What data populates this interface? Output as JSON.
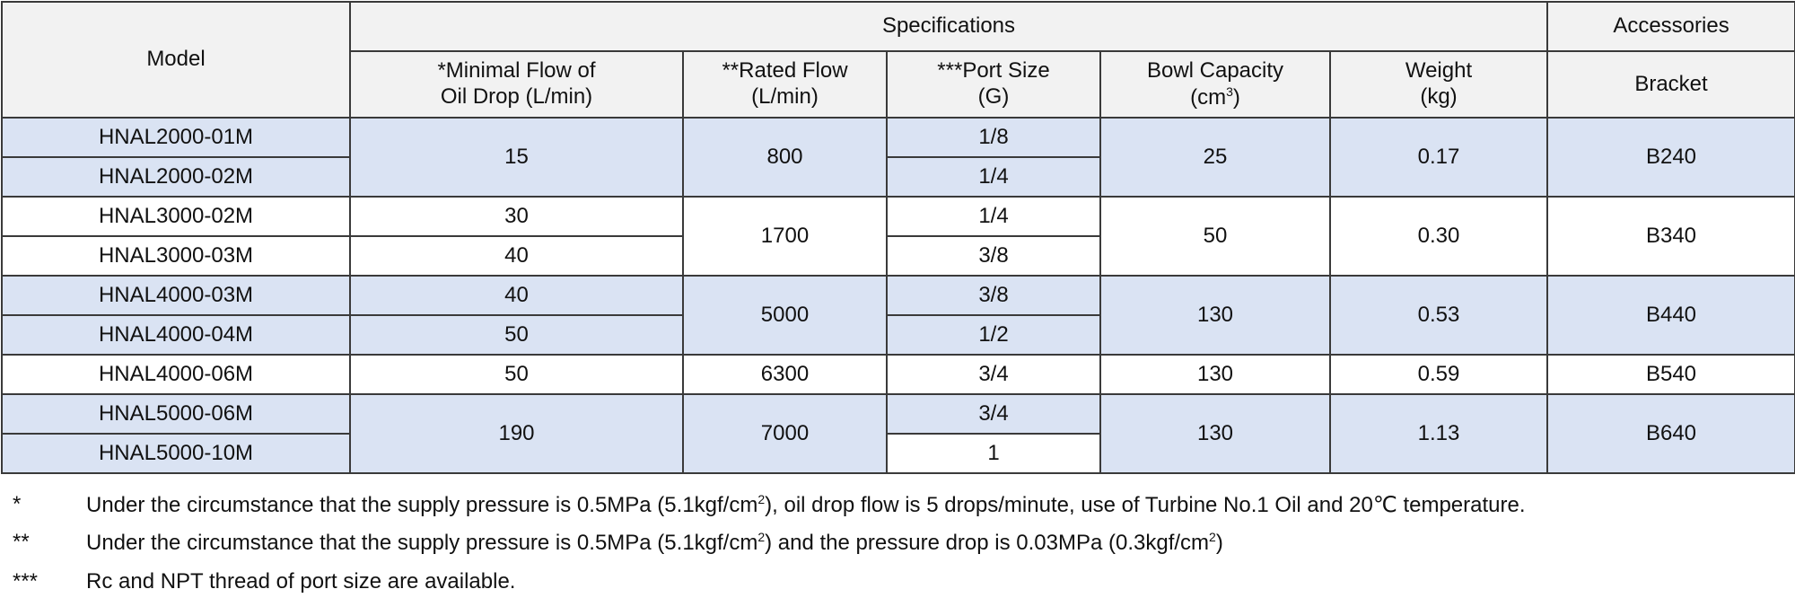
{
  "header": {
    "model": "Model",
    "specifications": "Specifications",
    "accessories": "Accessories",
    "min_flow": [
      "*Minimal Flow of",
      "Oil Drop (L/min)"
    ],
    "rated_flow": [
      "**Rated Flow",
      "(L/min)"
    ],
    "port_size": [
      "***Port Size",
      "(G)"
    ],
    "bowl_capacity": [
      "Bowl Capacity",
      "(cm",
      "3",
      ")"
    ],
    "weight": [
      "Weight",
      "(kg)"
    ],
    "bracket": "Bracket"
  },
  "rows": [
    {
      "model": "HNAL2000-01M",
      "min_flow": "15",
      "rated_flow": "800",
      "port": "1/8",
      "bowl": "25",
      "weight": "0.17",
      "bracket": "B240"
    },
    {
      "model": "HNAL2000-02M",
      "port": "1/4"
    },
    {
      "model": "HNAL3000-02M",
      "min_flow": "30",
      "rated_flow": "1700",
      "port": "1/4",
      "bowl": "50",
      "weight": "0.30",
      "bracket": "B340"
    },
    {
      "model": "HNAL3000-03M",
      "min_flow": "40",
      "port": "3/8"
    },
    {
      "model": "HNAL4000-03M",
      "min_flow": "40",
      "rated_flow": "5000",
      "port": "3/8",
      "bowl": "130",
      "weight": "0.53",
      "bracket": "B440"
    },
    {
      "model": "HNAL4000-04M",
      "min_flow": "50",
      "port": "1/2"
    },
    {
      "model": "HNAL4000-06M",
      "min_flow": "50",
      "rated_flow": "6300",
      "port": "3/4",
      "bowl": "130",
      "weight": "0.59",
      "bracket": "B540"
    },
    {
      "model": "HNAL5000-06M",
      "min_flow": "190",
      "rated_flow": "7000",
      "port": "3/4",
      "bowl": "130",
      "weight": "1.13",
      "bracket": "B640"
    },
    {
      "model": "HNAL5000-10M",
      "port": "1"
    }
  ],
  "colors": {
    "header_bg": "#f2f2f2",
    "band_bg": "#dae3f3",
    "border": "#3a3a3a"
  },
  "notes": [
    {
      "marker": "*",
      "parts": [
        "Under the circumstance that the supply pressure is 0.5MPa (5.1kgf/cm",
        "2",
        "), oil drop flow is 5 drops/minute, use of Turbine No.1 Oil and 20℃  temperature."
      ]
    },
    {
      "marker": "**",
      "parts": [
        "Under the circumstance that the supply pressure is 0.5MPa (5.1kgf/cm",
        "2",
        ") and the pressure drop is 0.03MPa (0.3kgf/cm",
        "2",
        ")"
      ]
    },
    {
      "marker": "***",
      "parts": [
        "Rc and NPT thread of port size are available."
      ]
    }
  ]
}
